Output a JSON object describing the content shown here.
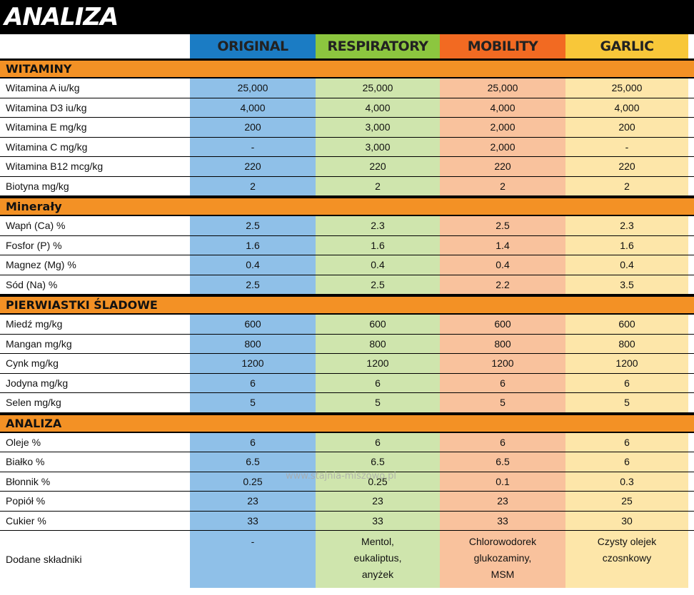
{
  "title": "ANALIZA",
  "columns": [
    "ORIGINAL",
    "RESPIRATORY",
    "MOBILITY",
    "GARLIC"
  ],
  "sections": [
    {
      "name": "WITAMINY",
      "rows": [
        {
          "label": "Witamina A iu/kg",
          "values": [
            "25,000",
            "25,000",
            "25,000",
            "25,000"
          ]
        },
        {
          "label": "Witamina D3 iu/kg",
          "values": [
            "4,000",
            "4,000",
            "4,000",
            "4,000"
          ]
        },
        {
          "label": "Witamina E mg/kg",
          "values": [
            "200",
            "3,000",
            "2,000",
            "200"
          ]
        },
        {
          "label": "Witamina C mg/kg",
          "values": [
            "-",
            "3,000",
            "2,000",
            "-"
          ]
        },
        {
          "label": "Witamina B12 mcg/kg",
          "values": [
            "220",
            "220",
            "220",
            "220"
          ]
        },
        {
          "label": "Biotyna mg/kg",
          "values": [
            "2",
            "2",
            "2",
            "2"
          ]
        }
      ]
    },
    {
      "name": "Minerały",
      "rows": [
        {
          "label": "Wapń (Ca) %",
          "values": [
            "2.5",
            "2.3",
            "2.5",
            "2.3"
          ]
        },
        {
          "label": "Fosfor (P) %",
          "values": [
            "1.6",
            "1.6",
            "1.4",
            "1.6"
          ]
        },
        {
          "label": "Magnez (Mg) %",
          "values": [
            "0.4",
            "0.4",
            "0.4",
            "0.4"
          ]
        },
        {
          "label": "Sód (Na) %",
          "values": [
            "2.5",
            "2.5",
            "2.2",
            "3.5"
          ]
        }
      ]
    },
    {
      "name": "PIERWIASTKI ŚLADOWE",
      "rows": [
        {
          "label": "Miedź mg/kg",
          "values": [
            "600",
            "600",
            "600",
            "600"
          ]
        },
        {
          "label": "Mangan mg/kg",
          "values": [
            "800",
            "800",
            "800",
            "800"
          ]
        },
        {
          "label": "Cynk mg/kg",
          "values": [
            "1200",
            "1200",
            "1200",
            "1200"
          ]
        },
        {
          "label": "Jodyna mg/kg",
          "values": [
            "6",
            "6",
            "6",
            "6"
          ]
        },
        {
          "label": "Selen mg/kg",
          "values": [
            "5",
            "5",
            "5",
            "5"
          ]
        }
      ]
    },
    {
      "name": "ANALIZA",
      "rows": [
        {
          "label": "Oleje %",
          "values": [
            "6",
            "6",
            "6",
            "6"
          ]
        },
        {
          "label": "Białko %",
          "values": [
            "6.5",
            "6.5",
            "6.5",
            "6"
          ]
        },
        {
          "label": "Błonnik %",
          "values": [
            "0.25",
            "0.25",
            "0.1",
            "0.3"
          ]
        },
        {
          "label": "Popiół %",
          "values": [
            "23",
            "23",
            "23",
            "25"
          ]
        },
        {
          "label": "Cukier %",
          "values": [
            "33",
            "33",
            "33",
            "30"
          ]
        }
      ]
    }
  ],
  "ingredients": {
    "label": "Dodane składniki",
    "values": [
      [
        "-"
      ],
      [
        "Mentol,",
        "eukaliptus,",
        "anyżek"
      ],
      [
        "Chlorowodorek",
        "glukozaminy,",
        "MSM"
      ],
      [
        "Czysty olejek",
        "czosnkowy"
      ]
    ]
  },
  "watermark": "www.stajnia-miszowo.pl"
}
